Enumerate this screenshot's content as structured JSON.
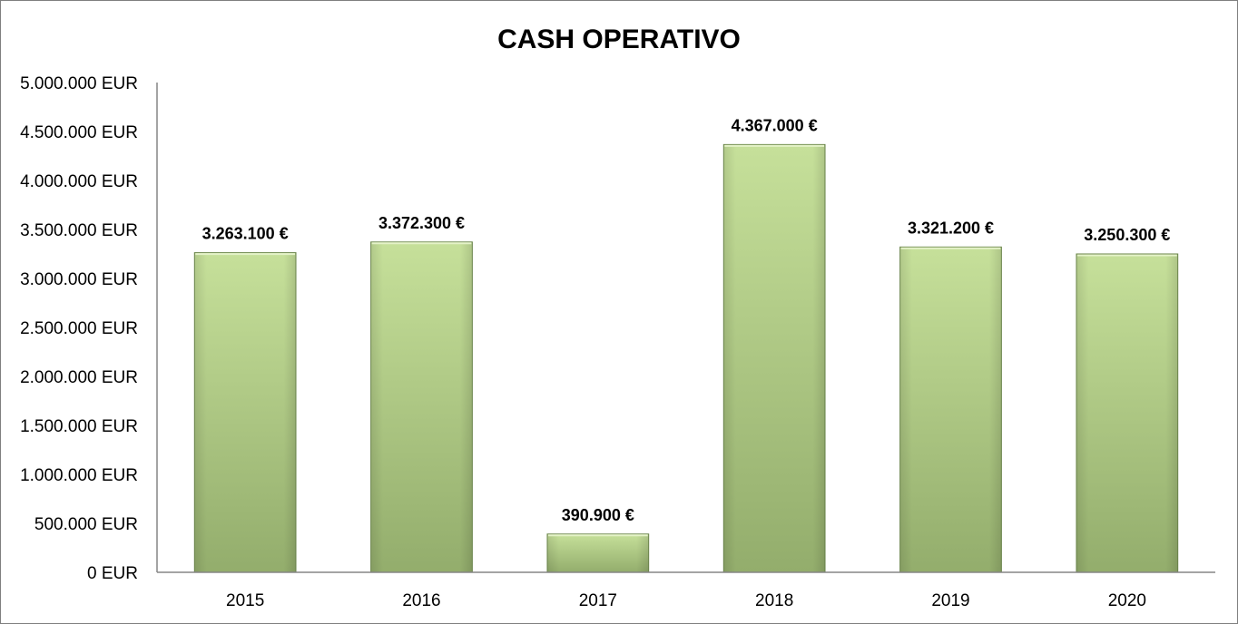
{
  "chart_data": {
    "type": "bar",
    "title": "CASH OPERATIVO",
    "xlabel": "",
    "ylabel": "",
    "categories": [
      "2015",
      "2016",
      "2017",
      "2018",
      "2019",
      "2020"
    ],
    "values": [
      3263100,
      3372300,
      390900,
      4367000,
      3321200,
      3250300
    ],
    "data_labels": [
      "3.263.100 €",
      "3.372.300 €",
      "390.900 €",
      "4.367.000 €",
      "3.321.200 €",
      "3.250.300 €"
    ],
    "y_ticks": [
      0,
      500000,
      1000000,
      1500000,
      2000000,
      2500000,
      3000000,
      3500000,
      4000000,
      4500000,
      5000000
    ],
    "y_tick_labels": [
      "0 EUR",
      "500.000 EUR",
      "1.000.000 EUR",
      "1.500.000 EUR",
      "2.000.000 EUR",
      "2.500.000 EUR",
      "3.000.000 EUR",
      "3.500.000 EUR",
      "4.000.000 EUR",
      "4.500.000 EUR",
      "5.000.000 EUR"
    ],
    "ylim": [
      0,
      5000000
    ],
    "grid": false,
    "legend": "none",
    "colors": {
      "bar_light": "#c6e09a",
      "bar_dark": "#93ad6c",
      "bar_edge": "#6f8a4e"
    }
  }
}
